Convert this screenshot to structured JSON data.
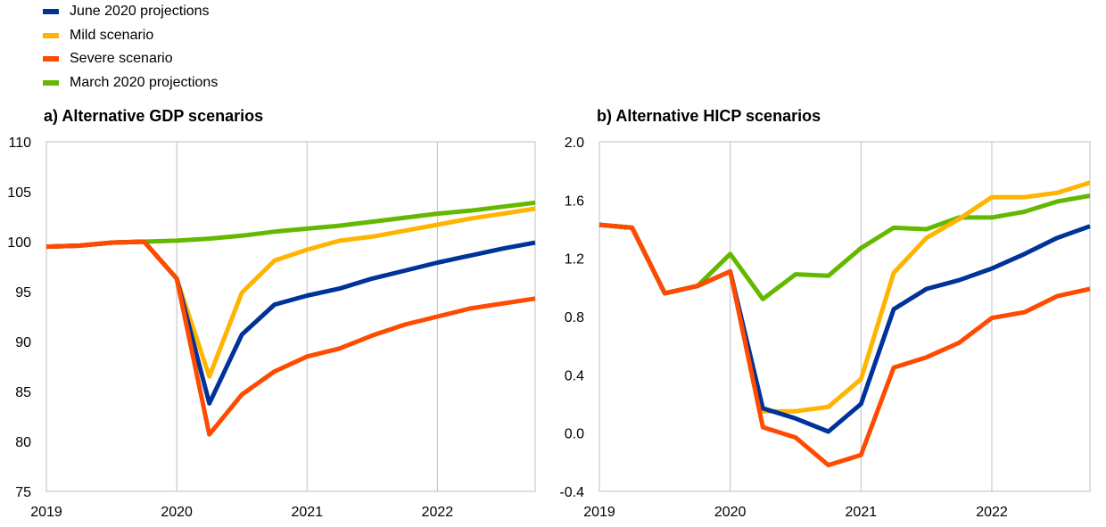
{
  "legend": [
    {
      "name": "June 2020 projections",
      "color": "#003399"
    },
    {
      "name": "Mild scenario",
      "color": "#FFB400"
    },
    {
      "name": "Severe scenario",
      "color": "#FF4B00"
    },
    {
      "name": "March 2020 projections",
      "color": "#65B800"
    }
  ],
  "chart_data": [
    {
      "type": "line",
      "title": "a) Alternative GDP scenarios",
      "x": [
        "2019Q1",
        "2019Q2",
        "2019Q3",
        "2019Q4",
        "2020Q1",
        "2020Q2",
        "2020Q3",
        "2020Q4",
        "2021Q1",
        "2021Q2",
        "2021Q3",
        "2021Q4",
        "2022Q1",
        "2022Q2",
        "2022Q3",
        "2022Q4"
      ],
      "x_ticks": [
        "2019",
        "2020",
        "2021",
        "2022"
      ],
      "y_ticks": [
        "75",
        "80",
        "85",
        "90",
        "95",
        "100",
        "105",
        "110"
      ],
      "ylim": [
        75,
        110
      ],
      "grid": "vertical at year starts",
      "series": [
        {
          "name": "March 2020 projections",
          "color": "#65B800",
          "values": [
            99.5,
            99.6,
            99.9,
            100.0,
            100.1,
            100.3,
            100.6,
            101.0,
            101.3,
            101.6,
            102.0,
            102.4,
            102.8,
            103.1,
            103.5,
            103.9
          ]
        },
        {
          "name": "Mild scenario",
          "color": "#FFB400",
          "values": [
            99.5,
            99.6,
            99.9,
            100.0,
            96.3,
            86.5,
            94.9,
            98.1,
            99.2,
            100.1,
            100.5,
            101.1,
            101.7,
            102.3,
            102.8,
            103.3
          ]
        },
        {
          "name": "June 2020 projections",
          "color": "#003399",
          "values": [
            99.5,
            99.6,
            99.9,
            100.0,
            96.3,
            83.8,
            90.7,
            93.7,
            94.6,
            95.3,
            96.3,
            97.1,
            97.9,
            98.6,
            99.3,
            99.9
          ]
        },
        {
          "name": "Severe scenario",
          "color": "#FF4B00",
          "values": [
            99.5,
            99.6,
            99.9,
            100.0,
            96.3,
            80.7,
            84.7,
            87.0,
            88.5,
            89.3,
            90.6,
            91.7,
            92.5,
            93.3,
            93.8,
            94.3
          ]
        }
      ]
    },
    {
      "type": "line",
      "title": "b) Alternative HICP scenarios",
      "x": [
        "2019Q1",
        "2019Q2",
        "2019Q3",
        "2019Q4",
        "2020Q1",
        "2020Q2",
        "2020Q3",
        "2020Q4",
        "2021Q1",
        "2021Q2",
        "2021Q3",
        "2021Q4",
        "2022Q1",
        "2022Q2",
        "2022Q3",
        "2022Q4"
      ],
      "x_ticks": [
        "2019",
        "2020",
        "2021",
        "2022"
      ],
      "y_ticks": [
        "-0.4",
        "0.0",
        "0.4",
        "0.8",
        "1.2",
        "1.6",
        "2.0"
      ],
      "ylim": [
        -0.4,
        2.0
      ],
      "grid": "vertical at year starts",
      "series": [
        {
          "name": "March 2020 projections",
          "color": "#65B800",
          "values": [
            1.43,
            1.41,
            0.96,
            1.01,
            1.23,
            0.92,
            1.09,
            1.08,
            1.27,
            1.41,
            1.4,
            1.48,
            1.48,
            1.52,
            1.59,
            1.63
          ]
        },
        {
          "name": "Mild scenario",
          "color": "#FFB400",
          "values": [
            1.43,
            1.41,
            0.96,
            1.01,
            1.11,
            0.15,
            0.15,
            0.18,
            0.37,
            1.1,
            1.34,
            1.47,
            1.62,
            1.62,
            1.65,
            1.72
          ]
        },
        {
          "name": "June 2020 projections",
          "color": "#003399",
          "values": [
            1.43,
            1.41,
            0.96,
            1.01,
            1.11,
            0.17,
            0.1,
            0.01,
            0.2,
            0.85,
            0.99,
            1.05,
            1.13,
            1.23,
            1.34,
            1.42
          ]
        },
        {
          "name": "Severe scenario",
          "color": "#FF4B00",
          "values": [
            1.43,
            1.41,
            0.96,
            1.01,
            1.11,
            0.04,
            -0.03,
            -0.22,
            -0.15,
            0.45,
            0.52,
            0.62,
            0.79,
            0.83,
            0.94,
            0.99
          ]
        }
      ]
    }
  ]
}
